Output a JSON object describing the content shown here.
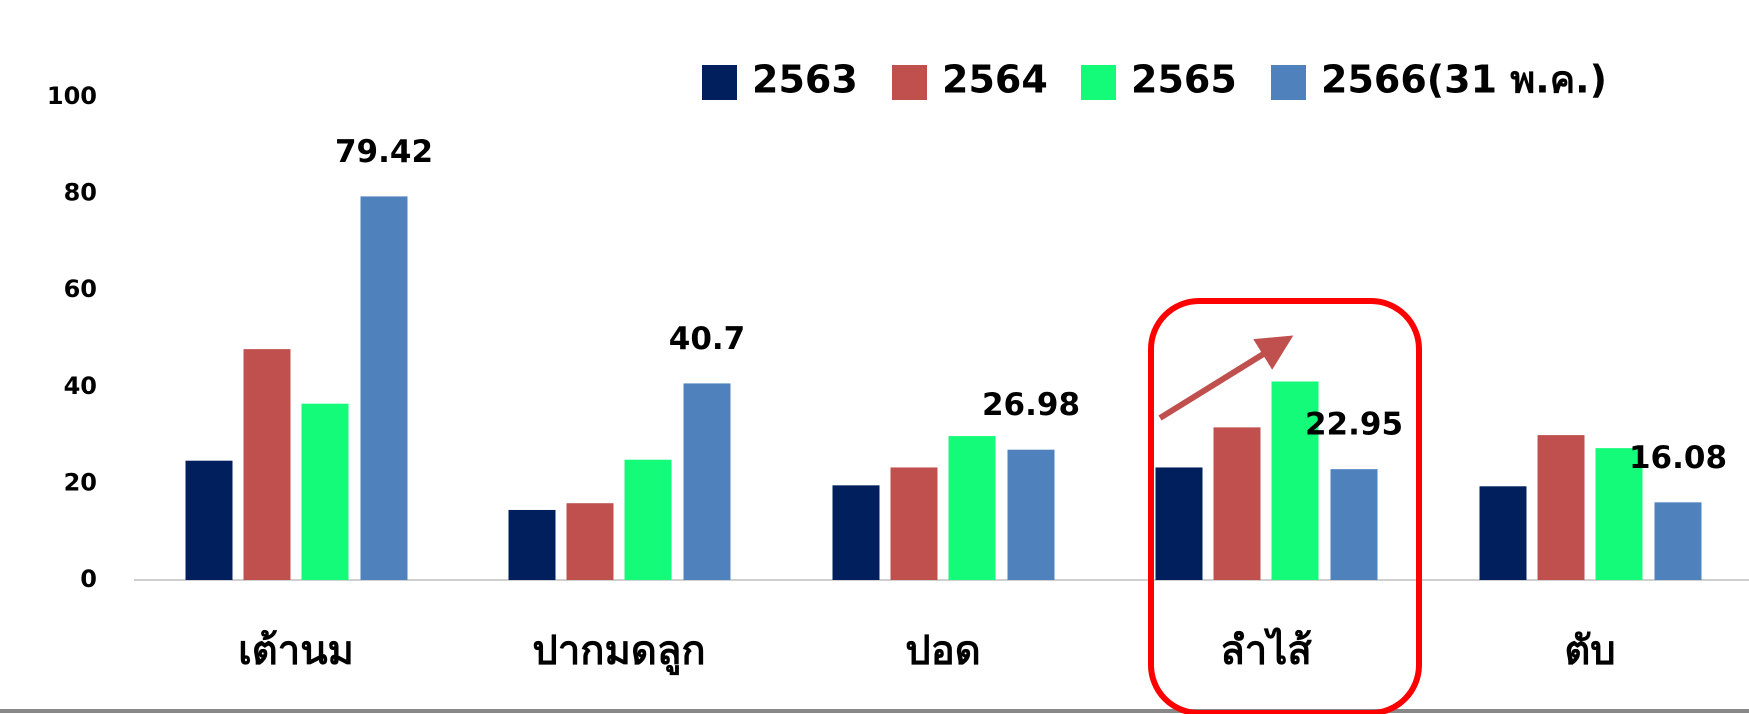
{
  "chart_data": {
    "type": "bar",
    "categories": [
      "เต้านม",
      "ปากมดลูก",
      "ปอด",
      "ลำไส้",
      "ตับ"
    ],
    "series": [
      {
        "name": "2563",
        "color": "#001f5c",
        "values": [
          24.7,
          14.5,
          19.6,
          23.3,
          19.4
        ]
      },
      {
        "name": "2564",
        "color": "#c0504d",
        "values": [
          47.8,
          15.9,
          23.3,
          31.6,
          30.0
        ]
      },
      {
        "name": "2565",
        "color": "#14fb7a",
        "values": [
          36.5,
          24.9,
          29.8,
          41.1,
          27.3
        ]
      },
      {
        "name": "2566(31 พ.ค.)",
        "color": "#4f81bd",
        "values": [
          79.42,
          40.7,
          26.98,
          22.95,
          16.08
        ],
        "value_labels": [
          "79.42",
          "40.7",
          "26.98",
          "22.95",
          "16.08"
        ]
      }
    ],
    "ylim": [
      0,
      100
    ],
    "yticks": [
      0,
      20,
      40,
      60,
      80,
      100
    ],
    "grid": false,
    "legend": "top"
  }
}
